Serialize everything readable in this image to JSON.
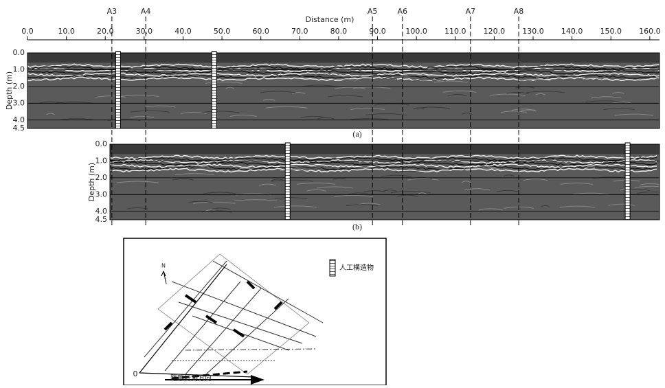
{
  "figure": {
    "x_axis": {
      "label": "Distance (m)",
      "xlim": [
        0,
        162.5
      ],
      "xticks": [
        {
          "value": 0,
          "label": "0.0"
        },
        {
          "value": 10,
          "label": "10.0"
        },
        {
          "value": 20,
          "label": "20.0"
        },
        {
          "value": 30,
          "label": "30.0"
        },
        {
          "value": 40,
          "label": "40.0"
        },
        {
          "value": 50,
          "label": "50.0"
        },
        {
          "value": 60,
          "label": "60.0"
        },
        {
          "value": 70,
          "label": "70.0"
        },
        {
          "value": 80,
          "label": "80.0"
        },
        {
          "value": 90,
          "label": "90.0"
        },
        {
          "value": 100,
          "label": "100.0"
        },
        {
          "value": 110,
          "label": "110.0"
        },
        {
          "value": 120,
          "label": "120.0"
        },
        {
          "value": 130,
          "label": "130.0"
        },
        {
          "value": 140,
          "label": "140.0"
        },
        {
          "value": 150,
          "label": "150.0"
        },
        {
          "value": 160,
          "label": "160.0"
        }
      ]
    },
    "depth_axis": {
      "label": "Depth (m)",
      "ylim": [
        0,
        4.5
      ],
      "yticks": [
        {
          "value": 0,
          "label": "0.0"
        },
        {
          "value": 1,
          "label": "1.0"
        },
        {
          "value": 2,
          "label": "2.0"
        },
        {
          "value": 3,
          "label": "3.0"
        },
        {
          "value": 4,
          "label": "4.0"
        },
        {
          "value": 4.5,
          "label": "4.5"
        }
      ]
    },
    "markers": [
      {
        "label": "A3",
        "value": 21.7
      },
      {
        "label": "A4",
        "value": 30.4
      },
      {
        "label": "A5",
        "value": 88.7
      },
      {
        "label": "A6",
        "value": 96.4
      },
      {
        "label": "A7",
        "value": 113.9
      },
      {
        "label": "A8",
        "value": 126.3
      }
    ],
    "panels": [
      {
        "label": "(a)",
        "xlim": [
          0,
          162.5
        ],
        "structures": [
          23.3,
          48.0
        ]
      },
      {
        "label": "(b)",
        "xlim": [
          21.2,
          162.5
        ],
        "structures": [
          66.9,
          154.3
        ]
      }
    ],
    "inset": {
      "legend_label": "人工構造物",
      "north": "N",
      "origin": "0",
      "direction_label": "距離計測方向"
    }
  }
}
